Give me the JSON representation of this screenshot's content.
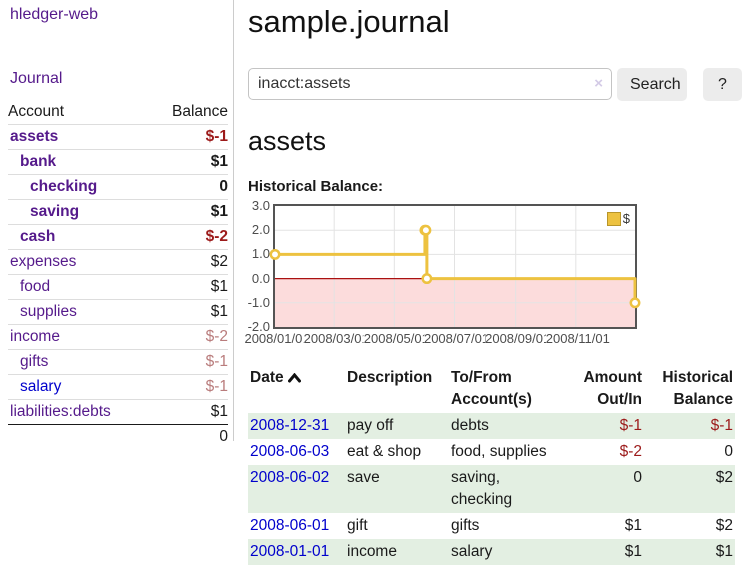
{
  "colors": {
    "purple": "#551a8b",
    "blue": "#0000cc",
    "neg_strong": "#9c1a1a",
    "neg_faded": "#b97c7c",
    "row_green": "#e3efe2",
    "gold": "#edc240"
  },
  "app": {
    "brand": "hledger-web",
    "nav_journal": "Journal"
  },
  "sidebar": {
    "accounts_table": {
      "header_account": "Account",
      "header_balance": "Balance",
      "rows": [
        {
          "name": "assets",
          "level": 1,
          "bold": true,
          "name_color": "purple",
          "balance": "$-1",
          "balance_class": "neg-strong"
        },
        {
          "name": "bank",
          "level": 2,
          "bold": true,
          "name_color": "purple",
          "balance": "$1",
          "balance_class": ""
        },
        {
          "name": "checking",
          "level": 3,
          "bold": true,
          "name_color": "purple",
          "balance": "0",
          "balance_class": ""
        },
        {
          "name": "saving",
          "level": 3,
          "bold": true,
          "name_color": "purple",
          "balance": "$1",
          "balance_class": ""
        },
        {
          "name": "cash",
          "level": 2,
          "bold": true,
          "name_color": "purple",
          "balance": "$-2",
          "balance_class": "neg-strong"
        },
        {
          "name": "expenses",
          "level": 1,
          "bold": false,
          "name_color": "purple",
          "balance": "$2",
          "balance_class": ""
        },
        {
          "name": "food",
          "level": 2,
          "bold": false,
          "name_color": "purple",
          "balance": "$1",
          "balance_class": ""
        },
        {
          "name": "supplies",
          "level": 2,
          "bold": false,
          "name_color": "purple",
          "balance": "$1",
          "balance_class": ""
        },
        {
          "name": "income",
          "level": 1,
          "bold": false,
          "name_color": "purple",
          "balance": "$-2",
          "balance_class": "neg-faded"
        },
        {
          "name": "gifts",
          "level": 2,
          "bold": false,
          "name_color": "purple",
          "balance": "$-1",
          "balance_class": "neg-faded"
        },
        {
          "name": "salary",
          "level": 2,
          "bold": false,
          "name_color": "blue",
          "balance": "$-1",
          "balance_class": "neg-faded"
        },
        {
          "name": "liabilities:debts",
          "level": 1,
          "bold": false,
          "name_color": "purple",
          "balance": "$1",
          "balance_class": ""
        }
      ],
      "total": "0"
    }
  },
  "main": {
    "title": "sample.journal",
    "search": {
      "value": "inacct:assets",
      "clear_icon": "×",
      "button_label": "Search",
      "help_label": "?"
    },
    "account_heading": "assets",
    "chart_label": "Historical Balance:"
  },
  "chart_data": {
    "type": "line",
    "title": "Historical Balance:",
    "step_mode": true,
    "legend": [
      {
        "label": "$",
        "color": "#edc240"
      }
    ],
    "legend_position": "top-right",
    "x_min": "2008/01/01",
    "x_max": "2008/12/31",
    "ylim": [
      -2,
      3
    ],
    "y_ticks": [
      "3.0",
      "2.0",
      "1.0",
      "0.0",
      "-1.0",
      "-2.0"
    ],
    "x_ticks": [
      "2008/01/01",
      "2008/03/01",
      "2008/05/01",
      "2008/07/01",
      "2008/09/01",
      "2008/11/01"
    ],
    "points": [
      [
        "2008/01/01",
        1
      ],
      [
        "2008/06/01",
        2
      ],
      [
        "2008/06/02",
        2
      ],
      [
        "2008/06/03",
        0
      ],
      [
        "2008/12/31",
        -1
      ]
    ],
    "line_color": "#edc240",
    "marker_fill": "#ffffff",
    "zero_line_color": "#aa1111",
    "negative_region_color": "#fcdcdc",
    "grid_color": "#e3e3e3",
    "border_color": "#545454"
  },
  "register_table": {
    "headers": {
      "date": "Date",
      "description": "Description",
      "tofrom": "To/From Account(s)",
      "amount": "Amount Out/In",
      "balance": "Historical Balance"
    },
    "sort_icon": "chevron-up",
    "rows": [
      {
        "date": "2008-12-31",
        "description": "pay off",
        "tofrom": "debts",
        "amount": "$-1",
        "balance": "$-1"
      },
      {
        "date": "2008-06-03",
        "description": "eat & shop",
        "tofrom": "food, supplies",
        "amount": "$-2",
        "balance": "0"
      },
      {
        "date": "2008-06-02",
        "description": "save",
        "tofrom": "saving, checking",
        "amount": "0",
        "balance": "$2"
      },
      {
        "date": "2008-06-01",
        "description": "gift",
        "tofrom": "gifts",
        "amount": "$1",
        "balance": "$2"
      },
      {
        "date": "2008-01-01",
        "description": "income",
        "tofrom": "salary",
        "amount": "$1",
        "balance": "$1"
      }
    ]
  }
}
